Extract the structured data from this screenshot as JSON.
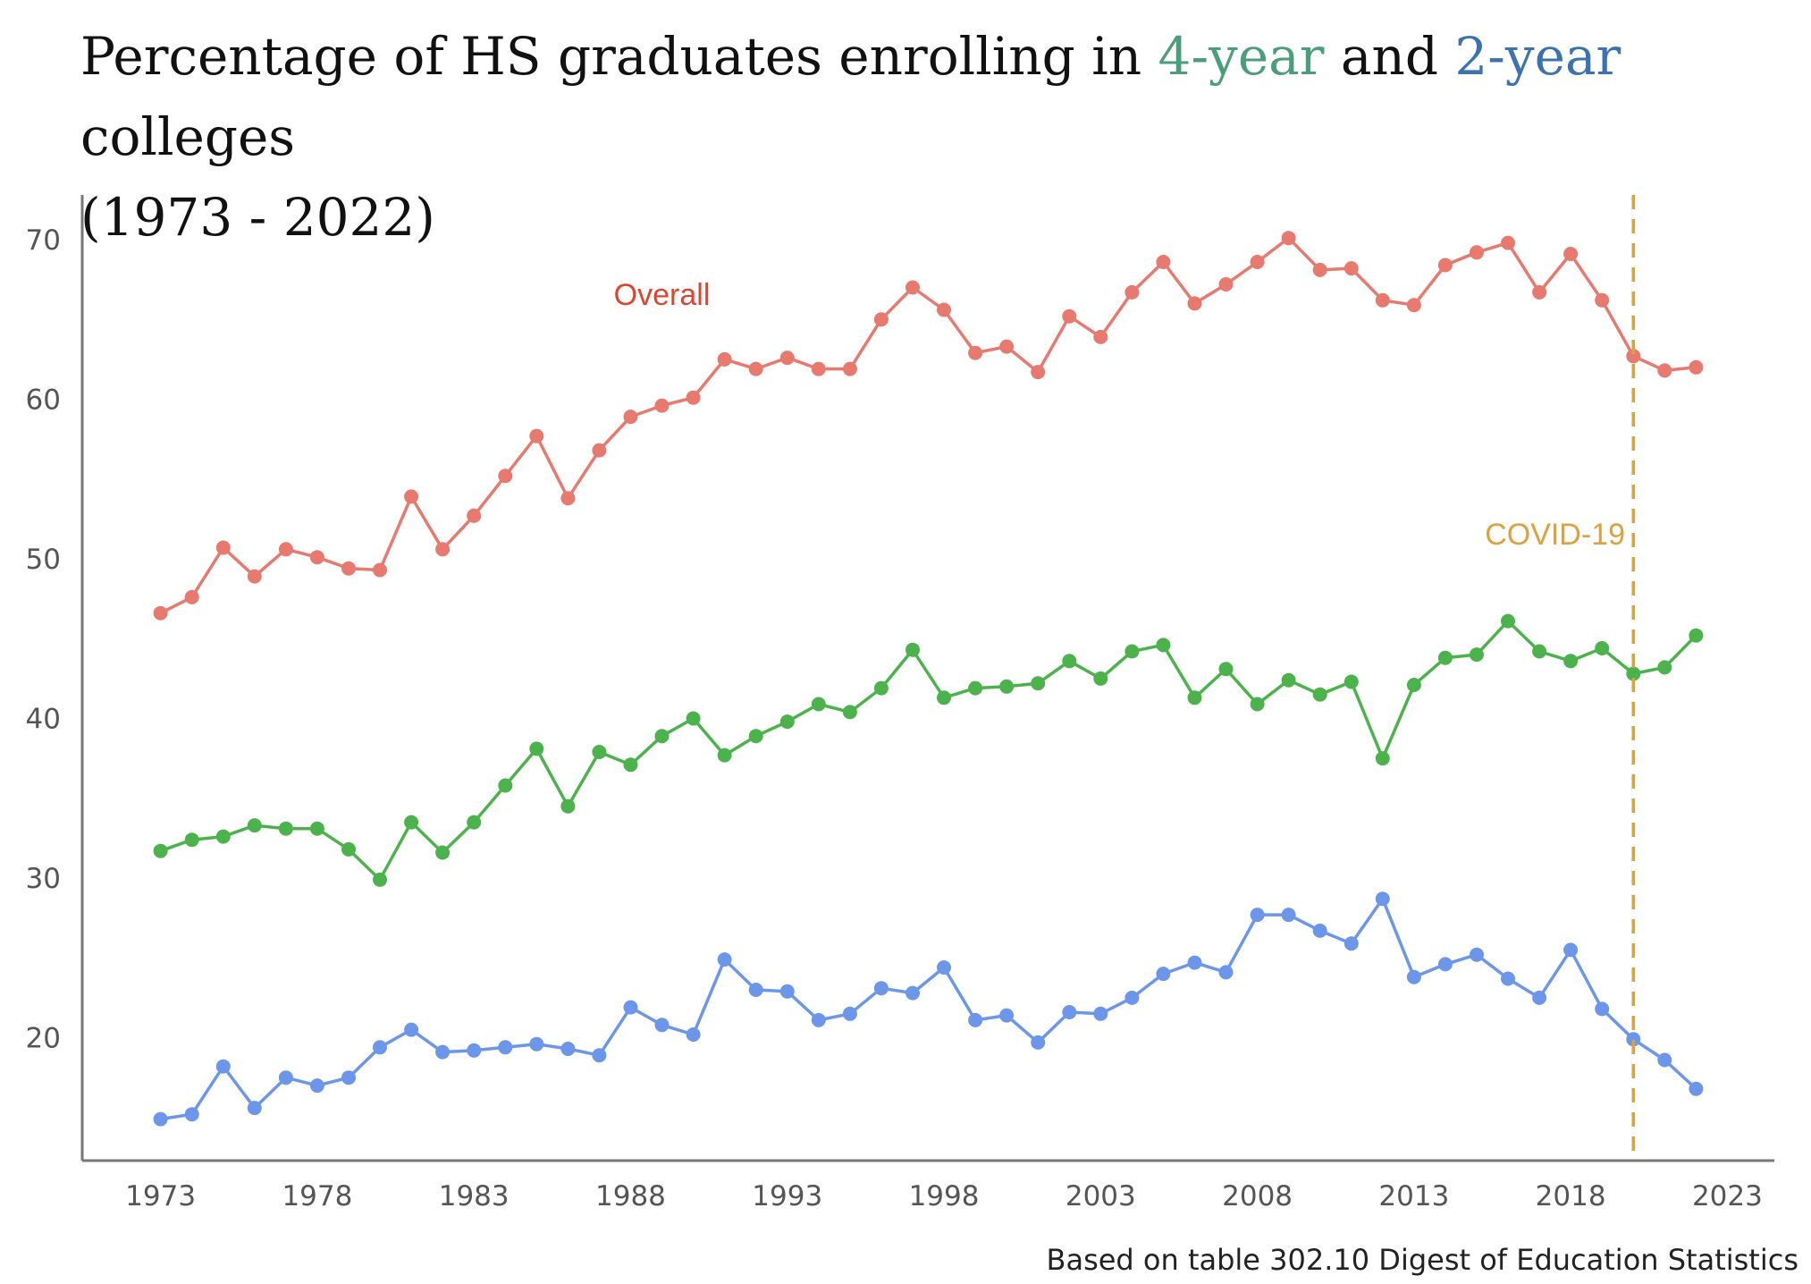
{
  "title": {
    "part1": "Percentage of HS graduates enrolling in ",
    "four_year": "4-year",
    "part2": " and ",
    "two_year": "2-year",
    "part3": " colleges",
    "line2": "(1973 - 2022)"
  },
  "caption": "Based on table 302.10 Digest of Education Statistics",
  "colors": {
    "overall": "#e8796f",
    "four_year": "#4cb34c",
    "two_year": "#6b96ea",
    "covid": "#dba23e",
    "overall_label": "#e0442f",
    "title_four_year": "#4a9e7a",
    "title_two_year": "#3b73b0"
  },
  "chart_data": {
    "type": "line",
    "x": [
      1973,
      1974,
      1975,
      1976,
      1977,
      1978,
      1979,
      1980,
      1981,
      1982,
      1983,
      1984,
      1985,
      1986,
      1987,
      1988,
      1989,
      1990,
      1991,
      1992,
      1993,
      1994,
      1995,
      1996,
      1997,
      1998,
      1999,
      2000,
      2001,
      2002,
      2003,
      2004,
      2005,
      2006,
      2007,
      2008,
      2009,
      2010,
      2011,
      2012,
      2013,
      2014,
      2015,
      2016,
      2017,
      2018,
      2019,
      2020,
      2021,
      2022
    ],
    "series": [
      {
        "key": "overall",
        "values": [
          46.6,
          47.6,
          50.7,
          48.9,
          50.6,
          50.1,
          49.4,
          49.3,
          53.9,
          50.6,
          52.7,
          55.2,
          57.7,
          53.8,
          56.8,
          58.9,
          59.6,
          60.1,
          62.5,
          61.9,
          62.6,
          61.9,
          61.9,
          65.0,
          67.0,
          65.6,
          62.9,
          63.3,
          61.7,
          65.2,
          63.9,
          66.7,
          68.6,
          66.0,
          67.2,
          68.6,
          70.1,
          68.1,
          68.2,
          66.2,
          65.9,
          68.4,
          69.2,
          69.8,
          66.7,
          69.1,
          66.2,
          62.7,
          61.8,
          62.0
        ]
      },
      {
        "key": "four_year",
        "values": [
          31.7,
          32.4,
          32.6,
          33.3,
          33.1,
          33.1,
          31.8,
          29.9,
          33.5,
          31.6,
          33.5,
          35.8,
          38.1,
          34.5,
          37.9,
          37.1,
          38.9,
          40.0,
          37.7,
          38.9,
          39.8,
          40.9,
          40.4,
          41.9,
          44.3,
          41.3,
          41.9,
          42.0,
          42.2,
          43.6,
          42.5,
          44.2,
          44.6,
          41.3,
          43.1,
          40.9,
          42.4,
          41.5,
          42.3,
          37.5,
          42.1,
          43.8,
          44.0,
          46.1,
          44.2,
          43.6,
          44.4,
          42.8,
          43.2,
          45.2
        ]
      },
      {
        "key": "two_year",
        "values": [
          14.9,
          15.2,
          18.2,
          15.6,
          17.5,
          17.0,
          17.5,
          19.4,
          20.5,
          19.1,
          19.2,
          19.4,
          19.6,
          19.3,
          18.9,
          21.9,
          20.8,
          20.2,
          24.9,
          23.0,
          22.9,
          21.1,
          21.5,
          23.1,
          22.8,
          24.4,
          21.1,
          21.4,
          19.7,
          21.6,
          21.5,
          22.5,
          24.0,
          24.7,
          24.1,
          27.7,
          27.7,
          26.7,
          25.9,
          28.7,
          23.8,
          24.6,
          25.2,
          23.7,
          22.5,
          25.5,
          21.8,
          19.9,
          18.6,
          16.8
        ]
      }
    ],
    "x_ticks": [
      1973,
      1978,
      1983,
      1988,
      1993,
      1998,
      2003,
      2008,
      2013,
      2018,
      2023
    ],
    "y_ticks": [
      20,
      30,
      40,
      50,
      60,
      70
    ],
    "xlim": [
      1970.5,
      2024.5
    ],
    "ylim": [
      12.3,
      72.8
    ],
    "grid": false,
    "annotations": [
      {
        "key": "overall_label",
        "text": "Overall",
        "x": 1989,
        "y": 65.9
      },
      {
        "key": "covid_label",
        "text": "COVID-19",
        "x": 2017.5,
        "y": 50.9
      },
      {
        "key": "covid_line",
        "x": 2020
      }
    ]
  }
}
